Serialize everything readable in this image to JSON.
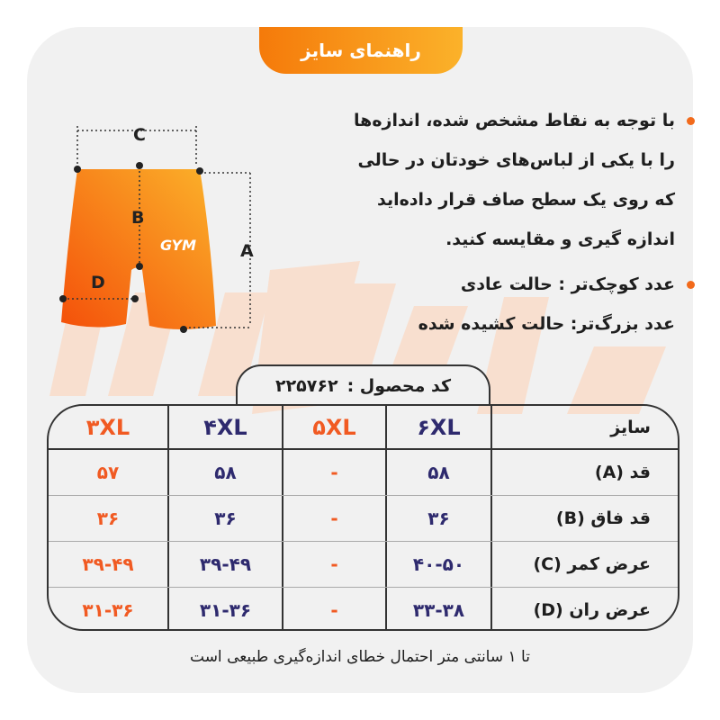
{
  "header": {
    "title": "راهنمای سایز"
  },
  "instructions": {
    "bullet1": [
      "با توجه به نقاط مشخص شده، اندازه‌ها",
      "را با یکی از لباس‌های خودتان در حالی",
      "که روی یک سطح صاف قرار داده‌اید",
      "اندازه گیری و مقایسه کنید."
    ],
    "bullet2": "عدد کوچک‌تر : حالت عادی",
    "bullet2_line2": "عدد بزرگ‌تر: حالت کشیده شده"
  },
  "diagram": {
    "labels": {
      "a": "A",
      "b": "B",
      "c": "C",
      "d": "D"
    }
  },
  "product": {
    "code_label": "کد محصول :",
    "code": "۲۲۵۷۶۲"
  },
  "table": {
    "size_label": "سایز",
    "sizes": [
      "۳XL",
      "۴XL",
      "۵XL",
      "۶XL"
    ],
    "rows": [
      {
        "label": "قد (A)",
        "values": [
          "۵۷",
          "۵۸",
          "-",
          "۵۸"
        ]
      },
      {
        "label": "قد فاق (B)",
        "values": [
          "۳۶",
          "۳۶",
          "-",
          "۳۶"
        ]
      },
      {
        "label": "عرض کمر (C)",
        "values": [
          "۳۹-۴۹",
          "۳۹-۴۹",
          "-",
          "۴۰-۵۰"
        ]
      },
      {
        "label": "عرض ران (D)",
        "values": [
          "۳۱-۳۶",
          "۳۱-۳۶",
          "-",
          "۳۳-۳۸"
        ]
      }
    ]
  },
  "footer": "تا ۱ سانتی متر احتمال خطای اندازه‌گیری طبیعی است",
  "colors": {
    "orange": "#f15a22",
    "navy": "#2e2a6e",
    "accent_gradient": [
      "#f57a0a",
      "#fbb22a"
    ],
    "background": "#f1f1f1"
  }
}
